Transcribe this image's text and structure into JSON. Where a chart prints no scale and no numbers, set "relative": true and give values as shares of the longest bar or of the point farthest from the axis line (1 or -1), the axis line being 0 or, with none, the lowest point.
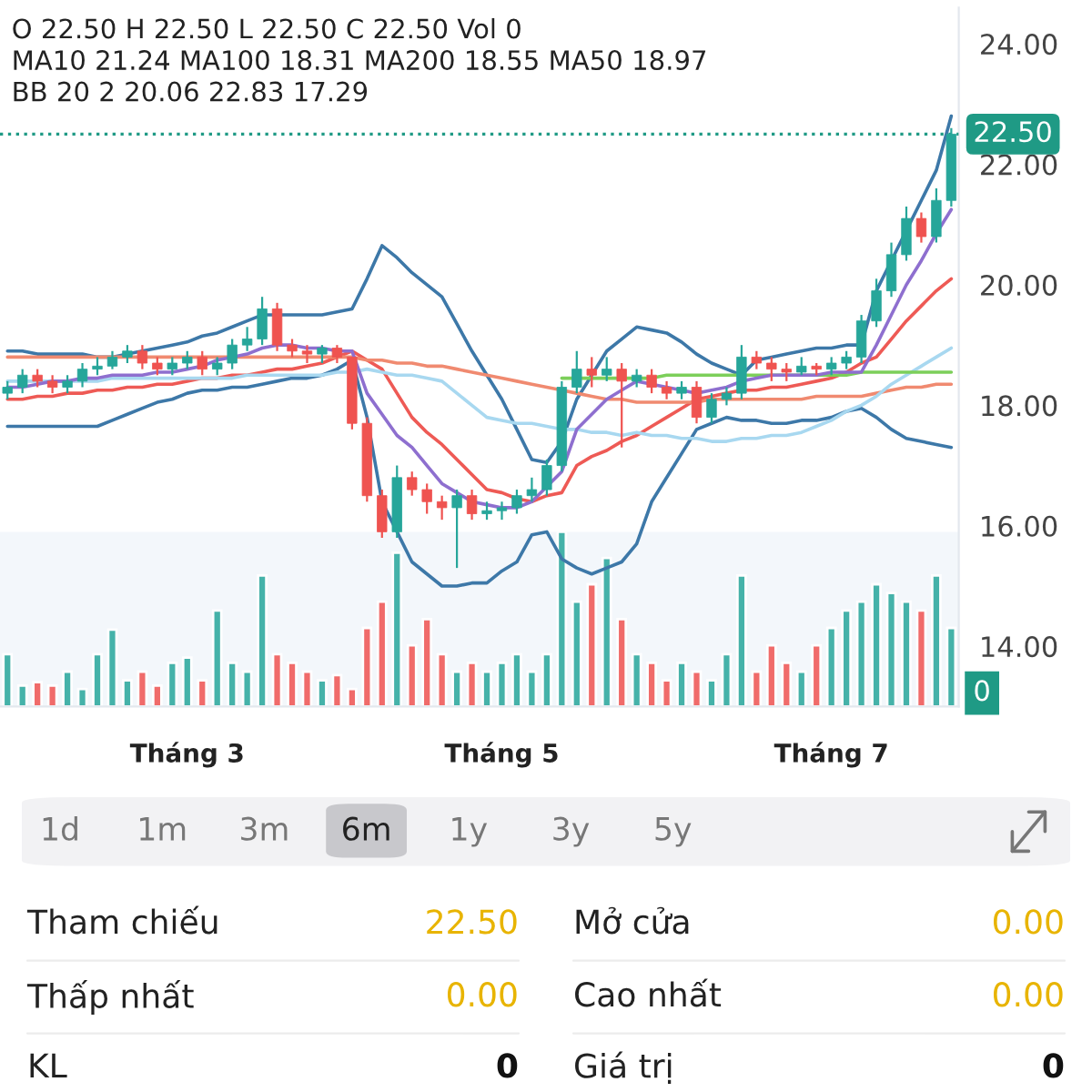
{
  "chart_data": [
    {
      "type": "candlestick",
      "annotations": [
        "O 22.50 H 22.50 L 22.50 C 22.50 Vol 0",
        "MA10 21.24 MA100 18.31 MA200 18.55 MA50 18.97",
        "BB 20 2 20.06 22.83 17.29"
      ],
      "categories": [
        null,
        null,
        null,
        null,
        null,
        null,
        null,
        null,
        null,
        null,
        null,
        null,
        "Tháng 3",
        null,
        null,
        null,
        null,
        null,
        null,
        null,
        null,
        null,
        null,
        null,
        null,
        null,
        null,
        null,
        null,
        null,
        null,
        null,
        null,
        "Tháng 5",
        null,
        null,
        null,
        null,
        null,
        null,
        null,
        null,
        null,
        null,
        null,
        null,
        null,
        null,
        null,
        null,
        null,
        null,
        null,
        null,
        null,
        "Tháng 7",
        null,
        null,
        null,
        null,
        null,
        null,
        null,
        null
      ],
      "ohlc": [
        [
          18.2,
          18.4,
          18.1,
          18.3
        ],
        [
          18.3,
          18.6,
          18.2,
          18.5
        ],
        [
          18.5,
          18.6,
          18.3,
          18.4
        ],
        [
          18.4,
          18.5,
          18.2,
          18.3
        ],
        [
          18.3,
          18.5,
          18.2,
          18.4
        ],
        [
          18.4,
          18.7,
          18.3,
          18.6
        ],
        [
          18.6,
          18.8,
          18.5,
          18.65
        ],
        [
          18.65,
          18.9,
          18.6,
          18.8
        ],
        [
          18.8,
          19.0,
          18.7,
          18.9
        ],
        [
          18.9,
          19.0,
          18.6,
          18.7
        ],
        [
          18.7,
          18.8,
          18.5,
          18.6
        ],
        [
          18.6,
          18.8,
          18.5,
          18.7
        ],
        [
          18.7,
          18.9,
          18.6,
          18.8
        ],
        [
          18.8,
          18.9,
          18.5,
          18.6
        ],
        [
          18.6,
          18.8,
          18.5,
          18.7
        ],
        [
          18.7,
          19.1,
          18.6,
          19.0
        ],
        [
          19.0,
          19.3,
          18.9,
          19.1
        ],
        [
          19.1,
          19.8,
          19.0,
          19.6
        ],
        [
          19.6,
          19.7,
          18.9,
          19.0
        ],
        [
          19.0,
          19.1,
          18.8,
          18.9
        ],
        [
          18.9,
          19.0,
          18.7,
          18.85
        ],
        [
          18.85,
          19.0,
          18.7,
          18.95
        ],
        [
          18.95,
          19.0,
          18.7,
          18.8
        ],
        [
          18.8,
          18.8,
          17.6,
          17.7
        ],
        [
          17.7,
          17.8,
          16.4,
          16.5
        ],
        [
          16.5,
          16.6,
          15.8,
          15.9
        ],
        [
          15.9,
          17.0,
          15.8,
          16.8
        ],
        [
          16.8,
          16.9,
          16.5,
          16.6
        ],
        [
          16.6,
          16.7,
          16.2,
          16.4
        ],
        [
          16.4,
          16.5,
          16.1,
          16.3
        ],
        [
          16.3,
          16.6,
          15.3,
          16.5
        ],
        [
          16.5,
          16.6,
          16.1,
          16.2
        ],
        [
          16.2,
          16.4,
          16.1,
          16.25
        ],
        [
          16.25,
          16.4,
          16.1,
          16.3
        ],
        [
          16.3,
          16.6,
          16.2,
          16.5
        ],
        [
          16.5,
          16.8,
          16.4,
          16.6
        ],
        [
          16.6,
          17.1,
          16.5,
          17.0
        ],
        [
          17.0,
          18.4,
          16.9,
          18.3
        ],
        [
          18.3,
          18.9,
          18.2,
          18.6
        ],
        [
          18.6,
          18.8,
          18.3,
          18.5
        ],
        [
          18.5,
          18.8,
          18.4,
          18.6
        ],
        [
          18.6,
          18.7,
          17.3,
          18.4
        ],
        [
          18.4,
          18.6,
          18.3,
          18.5
        ],
        [
          18.5,
          18.6,
          18.2,
          18.3
        ],
        [
          18.3,
          18.4,
          18.1,
          18.2
        ],
        [
          18.2,
          18.4,
          18.1,
          18.3
        ],
        [
          18.3,
          18.4,
          17.7,
          17.8
        ],
        [
          17.8,
          18.2,
          17.7,
          18.1
        ],
        [
          18.1,
          18.3,
          18.0,
          18.2
        ],
        [
          18.2,
          19.0,
          18.1,
          18.8
        ],
        [
          18.8,
          18.9,
          18.6,
          18.7
        ],
        [
          18.7,
          18.8,
          18.4,
          18.6
        ],
        [
          18.6,
          18.7,
          18.4,
          18.55
        ],
        [
          18.55,
          18.8,
          18.5,
          18.65
        ],
        [
          18.65,
          18.7,
          18.5,
          18.6
        ],
        [
          18.6,
          18.8,
          18.5,
          18.7
        ],
        [
          18.7,
          18.9,
          18.6,
          18.8
        ],
        [
          18.8,
          19.5,
          18.7,
          19.4
        ],
        [
          19.4,
          20.1,
          19.3,
          19.9
        ],
        [
          19.9,
          20.7,
          19.8,
          20.5
        ],
        [
          20.5,
          21.3,
          20.4,
          21.1
        ],
        [
          21.1,
          21.2,
          20.7,
          20.8
        ],
        [
          20.8,
          21.6,
          20.7,
          21.4
        ],
        [
          21.4,
          22.6,
          21.3,
          22.5
        ]
      ],
      "colors": [
        "#26a69a",
        "#26a69a",
        "#ef5350",
        "#ef5350",
        "#26a69a",
        "#26a69a",
        "#26a69a",
        "#26a69a",
        "#26a69a",
        "#ef5350",
        "#ef5350",
        "#26a69a",
        "#26a69a",
        "#ef5350",
        "#26a69a",
        "#26a69a",
        "#26a69a",
        "#26a69a",
        "#ef5350",
        "#ef5350",
        "#ef5350",
        "#26a69a",
        "#ef5350",
        "#ef5350",
        "#ef5350",
        "#ef5350",
        "#26a69a",
        "#ef5350",
        "#ef5350",
        "#ef5350",
        "#26a69a",
        "#ef5350",
        "#26a69a",
        "#26a69a",
        "#26a69a",
        "#26a69a",
        "#26a69a",
        "#26a69a",
        "#26a69a",
        "#ef5350",
        "#26a69a",
        "#ef5350",
        "#26a69a",
        "#ef5350",
        "#ef5350",
        "#26a69a",
        "#ef5350",
        "#26a69a",
        "#26a69a",
        "#26a69a",
        "#ef5350",
        "#ef5350",
        "#ef5350",
        "#26a69a",
        "#ef5350",
        "#26a69a",
        "#26a69a",
        "#26a69a",
        "#26a69a",
        "#26a69a",
        "#26a69a",
        "#ef5350",
        "#26a69a",
        "#26a69a"
      ],
      "series": [
        {
          "type": "line",
          "color": "#3d78a8",
          "values": [
            18.9,
            18.9,
            18.85,
            18.85,
            18.85,
            18.85,
            18.8,
            18.8,
            18.85,
            18.9,
            18.95,
            19.0,
            19.05,
            19.15,
            19.2,
            19.3,
            19.4,
            19.5,
            19.5,
            19.5,
            19.5,
            19.5,
            19.55,
            19.6,
            20.1,
            20.65,
            20.45,
            20.2,
            20.0,
            19.8,
            19.35,
            18.9,
            18.5,
            18.1,
            17.6,
            17.1,
            17.05,
            17.4,
            18.1,
            18.5,
            18.9,
            19.1,
            19.3,
            19.25,
            19.2,
            19.05,
            18.85,
            18.7,
            18.6,
            18.5,
            18.75,
            18.8,
            18.85,
            18.9,
            18.95,
            18.95,
            19.0,
            19.0,
            19.9,
            20.4,
            20.9,
            21.4,
            21.9,
            22.8
          ]
        },
        {
          "type": "line",
          "color": "#3d78a8",
          "values": [
            17.65,
            17.65,
            17.65,
            17.65,
            17.65,
            17.65,
            17.65,
            17.75,
            17.85,
            17.95,
            18.05,
            18.1,
            18.2,
            18.25,
            18.25,
            18.3,
            18.3,
            18.35,
            18.4,
            18.45,
            18.45,
            18.5,
            18.6,
            18.75,
            17.8,
            16.4,
            15.9,
            15.4,
            15.2,
            15.0,
            15.0,
            15.05,
            15.05,
            15.25,
            15.4,
            15.85,
            15.9,
            15.45,
            15.3,
            15.2,
            15.3,
            15.4,
            15.7,
            16.4,
            16.8,
            17.2,
            17.6,
            17.7,
            17.8,
            17.75,
            17.75,
            17.7,
            17.7,
            17.75,
            17.75,
            17.8,
            17.9,
            17.95,
            17.8,
            17.6,
            17.45,
            17.4,
            17.35,
            17.3
          ]
        },
        {
          "type": "line",
          "color": "#ee5a55",
          "values": [
            18.1,
            18.1,
            18.15,
            18.15,
            18.2,
            18.2,
            18.25,
            18.25,
            18.3,
            18.3,
            18.35,
            18.35,
            18.4,
            18.45,
            18.45,
            18.5,
            18.5,
            18.55,
            18.6,
            18.6,
            18.65,
            18.7,
            18.8,
            18.9,
            18.75,
            18.6,
            18.2,
            17.8,
            17.55,
            17.35,
            17.1,
            16.85,
            16.6,
            16.55,
            16.45,
            16.4,
            16.5,
            16.55,
            17.0,
            17.15,
            17.25,
            17.4,
            17.5,
            17.65,
            17.8,
            17.95,
            18.1,
            18.15,
            18.2,
            18.25,
            18.25,
            18.3,
            18.3,
            18.35,
            18.4,
            18.45,
            18.55,
            18.7,
            18.8,
            19.1,
            19.4,
            19.65,
            19.9,
            20.1
          ]
        },
        {
          "type": "line",
          "color": "#f08a70",
          "values": [
            18.8,
            18.8,
            18.8,
            18.8,
            18.8,
            18.8,
            18.8,
            18.8,
            18.8,
            18.8,
            18.8,
            18.8,
            18.8,
            18.8,
            18.8,
            18.8,
            18.8,
            18.8,
            18.8,
            18.8,
            18.8,
            18.8,
            18.8,
            18.8,
            18.75,
            18.75,
            18.7,
            18.7,
            18.65,
            18.65,
            18.6,
            18.55,
            18.5,
            18.45,
            18.4,
            18.35,
            18.3,
            18.25,
            18.2,
            18.15,
            18.1,
            18.1,
            18.05,
            18.05,
            18.05,
            18.05,
            18.05,
            18.1,
            18.1,
            18.1,
            18.1,
            18.1,
            18.1,
            18.1,
            18.15,
            18.15,
            18.15,
            18.15,
            18.2,
            18.25,
            18.3,
            18.3,
            18.35,
            18.35
          ]
        },
        {
          "type": "line",
          "color": "#a8d8f0",
          "values": [
            18.4,
            18.4,
            18.4,
            18.4,
            18.4,
            18.4,
            18.4,
            18.45,
            18.45,
            18.45,
            18.45,
            18.45,
            18.45,
            18.45,
            18.45,
            18.45,
            18.5,
            18.5,
            18.5,
            18.5,
            18.5,
            18.5,
            18.55,
            18.55,
            18.6,
            18.55,
            18.5,
            18.5,
            18.45,
            18.4,
            18.2,
            18.0,
            17.8,
            17.75,
            17.7,
            17.7,
            17.65,
            17.6,
            17.6,
            17.55,
            17.55,
            17.5,
            17.55,
            17.5,
            17.5,
            17.45,
            17.45,
            17.4,
            17.4,
            17.45,
            17.45,
            17.5,
            17.5,
            17.55,
            17.65,
            17.75,
            17.9,
            18.0,
            18.15,
            18.35,
            18.5,
            18.65,
            18.8,
            18.95
          ]
        },
        {
          "type": "line",
          "color": "#7ccf5a",
          "values": [
            null,
            null,
            null,
            null,
            null,
            null,
            null,
            null,
            null,
            null,
            null,
            null,
            null,
            null,
            null,
            null,
            null,
            null,
            null,
            null,
            null,
            null,
            null,
            null,
            null,
            null,
            null,
            null,
            null,
            null,
            null,
            null,
            null,
            null,
            null,
            null,
            null,
            18.45,
            18.45,
            18.45,
            18.45,
            18.45,
            18.45,
            18.45,
            18.5,
            18.5,
            18.5,
            18.5,
            18.5,
            18.5,
            18.5,
            18.5,
            18.5,
            18.5,
            18.5,
            18.5,
            18.5,
            18.55,
            18.55,
            18.55,
            18.55,
            18.55,
            18.55,
            18.55
          ]
        },
        {
          "type": "line",
          "color": "#8e6fcf",
          "values": [
            18.3,
            18.3,
            18.35,
            18.4,
            18.4,
            18.45,
            18.45,
            18.5,
            18.5,
            18.5,
            18.55,
            18.55,
            18.6,
            18.65,
            18.75,
            18.8,
            18.85,
            18.95,
            19.0,
            19.0,
            18.95,
            18.95,
            18.9,
            18.9,
            18.2,
            17.85,
            17.5,
            17.3,
            17.0,
            16.7,
            16.55,
            16.4,
            16.35,
            16.3,
            16.3,
            16.4,
            16.65,
            16.9,
            17.6,
            17.85,
            18.1,
            18.25,
            18.4,
            18.35,
            18.3,
            18.25,
            18.2,
            18.25,
            18.3,
            18.4,
            18.45,
            18.5,
            18.5,
            18.5,
            18.5,
            18.55,
            18.55,
            18.55,
            19.0,
            19.5,
            20.0,
            20.4,
            20.85,
            21.25
          ]
        }
      ],
      "ylim": [
        13.0,
        24.6
      ],
      "yticks": [
        {
          "value": 14,
          "label": "14.00"
        },
        {
          "value": 16,
          "label": "16.00"
        },
        {
          "value": 18,
          "label": "18.00"
        },
        {
          "value": 20,
          "label": "20.00"
        },
        {
          "value": 22,
          "label": "22.00"
        },
        {
          "value": 24,
          "label": "24.00"
        }
      ],
      "ref_lines": [
        {
          "axis": "y",
          "value": 22.5,
          "label": "22.50",
          "color": "#1f9a85",
          "line_style": "dotted"
        }
      ]
    },
    {
      "type": "bar",
      "relative": true,
      "annotations": [
        "0"
      ],
      "values": [
        0.3,
        0.12,
        0.14,
        0.12,
        0.2,
        0.1,
        0.3,
        0.44,
        0.15,
        0.2,
        0.12,
        0.25,
        0.28,
        0.15,
        0.55,
        0.25,
        0.2,
        0.75,
        0.3,
        0.25,
        0.2,
        0.15,
        0.18,
        0.1,
        0.45,
        0.6,
        0.88,
        0.35,
        0.5,
        0.3,
        0.2,
        0.25,
        0.2,
        0.25,
        0.3,
        0.2,
        0.3,
        1.0,
        0.6,
        0.7,
        0.85,
        0.5,
        0.3,
        0.25,
        0.15,
        0.25,
        0.2,
        0.15,
        0.3,
        0.75,
        0.2,
        0.35,
        0.25,
        0.2,
        0.35,
        0.45,
        0.55,
        0.6,
        0.7,
        0.65,
        0.6,
        0.55,
        0.75,
        0.45
      ],
      "colors": [
        "#26a69a",
        "#26a69a",
        "#ef5350",
        "#ef5350",
        "#26a69a",
        "#26a69a",
        "#26a69a",
        "#26a69a",
        "#26a69a",
        "#ef5350",
        "#ef5350",
        "#26a69a",
        "#26a69a",
        "#ef5350",
        "#26a69a",
        "#26a69a",
        "#26a69a",
        "#26a69a",
        "#ef5350",
        "#ef5350",
        "#ef5350",
        "#26a69a",
        "#ef5350",
        "#ef5350",
        "#ef5350",
        "#ef5350",
        "#26a69a",
        "#ef5350",
        "#ef5350",
        "#ef5350",
        "#26a69a",
        "#ef5350",
        "#26a69a",
        "#26a69a",
        "#26a69a",
        "#26a69a",
        "#26a69a",
        "#26a69a",
        "#26a69a",
        "#ef5350",
        "#26a69a",
        "#ef5350",
        "#26a69a",
        "#ef5350",
        "#ef5350",
        "#26a69a",
        "#ef5350",
        "#26a69a",
        "#26a69a",
        "#26a69a",
        "#ef5350",
        "#ef5350",
        "#ef5350",
        "#26a69a",
        "#ef5350",
        "#26a69a",
        "#26a69a",
        "#26a69a",
        "#26a69a",
        "#26a69a",
        "#26a69a",
        "#ef5350",
        "#26a69a",
        "#26a69a"
      ]
    },
    {
      "type": "other",
      "annotations": [
        "1d",
        "1m",
        "3m",
        "6m",
        "1y",
        "3y",
        "5y",
        "Tham chiếu",
        "22.50",
        "Mở cửa",
        "0.00",
        "Thấp nhất",
        "0.00",
        "Cao nhất",
        "0.00",
        "KL",
        "0",
        "Giá trị",
        "0"
      ]
    }
  ]
}
